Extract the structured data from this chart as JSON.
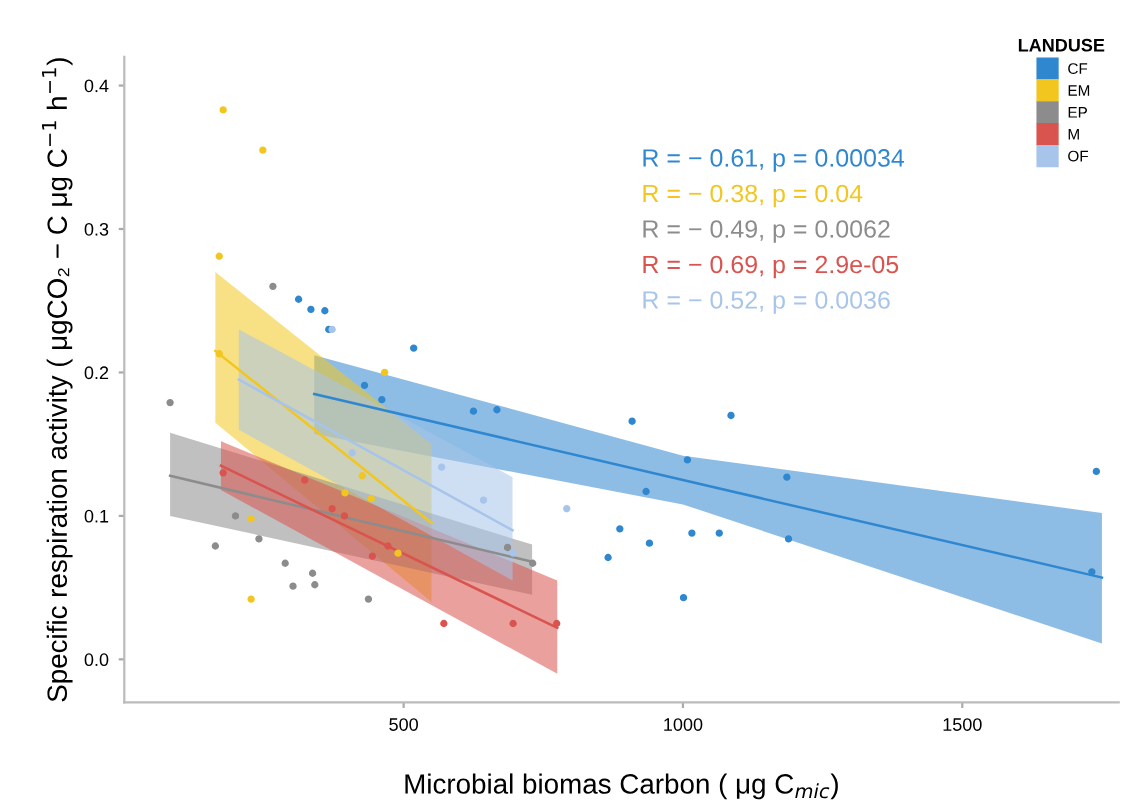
{
  "chart_data": {
    "type": "scatter",
    "xlabel": "Microbial biomas Carbon ( μg C$_{mic}$)",
    "ylabel": "Specific respiration activity ( μgCO₂ − C μg C$^{−1}$ h$^{−1}$)",
    "legend_title": "LANDUSE",
    "legend": "top right",
    "marker": "circle",
    "grid": false,
    "xlim": [
      0,
      1780
    ],
    "xticks": [
      500,
      1000,
      1500
    ],
    "ylim": [
      -0.03,
      0.42
    ],
    "yticks": [
      {
        "value": 0,
        "label": "0.0"
      },
      {
        "value": 0.1,
        "label": "0.1"
      },
      {
        "value": 0.2,
        "label": "0.2"
      },
      {
        "value": 0.3,
        "label": "0.3"
      },
      {
        "value": 0.4,
        "label": "0.4"
      }
    ],
    "annotations": [
      "R = − 0.61, p = 0.00034",
      "R = − 0.38, p = 0.04",
      "R = − 0.49, p = 0.0062",
      "R = − 0.69, p = 2.9e-05",
      "R = − 0.52, p = 0.0036"
    ],
    "series": [
      {
        "name": "CF",
        "color": "#2f87d0",
        "x": [
          312,
          334,
          359,
          366,
          430,
          461,
          518,
          625,
          667,
          866,
          887,
          909,
          934,
          940,
          1001,
          1008,
          1016,
          1065,
          1086,
          1186,
          1189,
          1732,
          1740
        ],
        "values": [
          0.251,
          0.244,
          0.243,
          0.23,
          0.191,
          0.181,
          0.217,
          0.173,
          0.174,
          0.071,
          0.091,
          0.166,
          0.117,
          0.081,
          0.043,
          0.139,
          0.088,
          0.088,
          0.17,
          0.127,
          0.084,
          0.061,
          0.131
        ]
      },
      {
        "name": "EM",
        "color": "#f2c61f",
        "x": [
          170,
          170,
          177,
          227,
          227,
          248,
          395,
          426,
          442,
          466,
          490
        ],
        "values": [
          0.281,
          0.213,
          0.383,
          0.098,
          0.042,
          0.355,
          0.116,
          0.128,
          0.112,
          0.2,
          0.074
        ]
      },
      {
        "name": "EP",
        "color": "#8c8c8c",
        "x": [
          82,
          163,
          199,
          241,
          266,
          288,
          302,
          337,
          341,
          437,
          686,
          731
        ],
        "values": [
          0.179,
          0.079,
          0.1,
          0.084,
          0.26,
          0.067,
          0.051,
          0.06,
          0.052,
          0.042,
          0.078,
          0.067
        ]
      },
      {
        "name": "M",
        "color": "#d9534f",
        "x": [
          177,
          323,
          372,
          394,
          444,
          472,
          572,
          696,
          774
        ],
        "values": [
          0.13,
          0.125,
          0.105,
          0.1,
          0.072,
          0.079,
          0.025,
          0.025,
          0.025
        ]
      },
      {
        "name": "OF",
        "color": "#a7c4ea",
        "x": [
          372,
          408,
          568,
          643,
          696,
          792
        ],
        "values": [
          0.23,
          0.144,
          0.134,
          0.111,
          0.074,
          0.105
        ]
      },
      {
        "type": "line",
        "marker": "none",
        "color": "#2f87d0",
        "x": [
          340,
          1000,
          1750
        ],
        "values": [
          0.185,
          0.125,
          0.057
        ],
        "lower": [
          0.157,
          0.108,
          0.011
        ],
        "upper": [
          0.212,
          0.142,
          0.102
        ]
      },
      {
        "type": "line",
        "marker": "none",
        "color": "#f2c61f",
        "x": [
          163,
          550
        ],
        "values": [
          0.215,
          0.095
        ],
        "lower": [
          0.165,
          0.04
        ],
        "upper": [
          0.27,
          0.15
        ]
      },
      {
        "type": "line",
        "marker": "none",
        "color": "#8c8c8c",
        "x": [
          82,
          730
        ],
        "values": [
          0.128,
          0.068
        ],
        "lower": [
          0.1,
          0.045
        ],
        "upper": [
          0.158,
          0.08
        ]
      },
      {
        "type": "line",
        "marker": "none",
        "color": "#d9534f",
        "x": [
          173,
          775
        ],
        "values": [
          0.135,
          0.022
        ],
        "lower": [
          0.118,
          -0.01
        ],
        "upper": [
          0.152,
          0.055
        ]
      },
      {
        "type": "line",
        "marker": "none",
        "color": "#a7c4ea",
        "x": [
          205,
          695
        ],
        "values": [
          0.195,
          0.09
        ],
        "lower": [
          0.16,
          0.055
        ],
        "upper": [
          0.23,
          0.127
        ]
      }
    ]
  }
}
